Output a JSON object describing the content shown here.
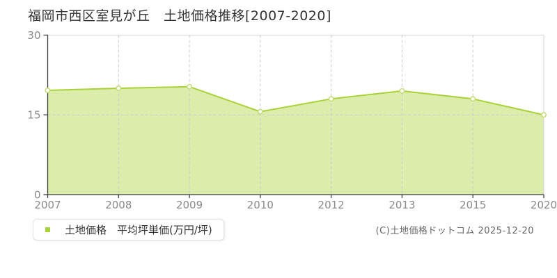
{
  "title": "福岡市西区室見が丘　土地価格推移[2007-2020]",
  "legend": {
    "label": "土地価格　平均坪単価(万円/坪)",
    "marker_color": "#a9d138"
  },
  "footer": {
    "copyright": "(C)土地価格ドットコム 2025-12-20"
  },
  "chart_data": {
    "type": "area",
    "title": "福岡市西区室見が丘 土地価格推移[2007-2020]",
    "categories": [
      "2007",
      "2008",
      "2009",
      "2010",
      "2012",
      "2013",
      "2015",
      "2020"
    ],
    "series": [
      {
        "name": "土地価格 平均坪単価(万円/坪)",
        "values": [
          19.6,
          20.0,
          20.3,
          15.6,
          18.0,
          19.5,
          18.0,
          15.0
        ]
      }
    ],
    "xlabel": "",
    "ylabel": "",
    "unit": "万円/坪",
    "ylim": [
      0,
      30
    ],
    "yticks": [
      0,
      15,
      30
    ],
    "grid": true,
    "legend_position": "bottom-left",
    "colors": {
      "line": "#a9d138",
      "fill": "#dcecab",
      "marker_fill": "#ffffff",
      "marker_stroke": "#c6de78",
      "grid": "#cbcbcb",
      "border": "#d6d6d6",
      "axis": "#3b3b3b",
      "tick_label": "#8a8a8a"
    }
  }
}
